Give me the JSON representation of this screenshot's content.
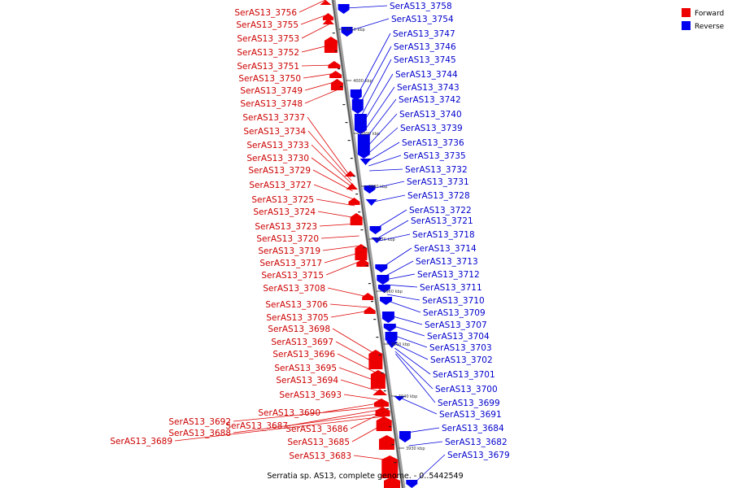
{
  "caption": "Serratia sp. AS13, complete genome. - 0..5442549",
  "colors": {
    "forward": "#ee0000",
    "reverse": "#0000ee",
    "backbone": "#808080"
  },
  "legend": [
    {
      "label": "Forward",
      "color": "#ee0000"
    },
    {
      "label": "Reverse",
      "color": "#0000ee"
    }
  ],
  "ticks": [
    "4010 kbp",
    "4000 kbp",
    "3990 kbp",
    "3980 kbp",
    "3970 kbp",
    "3960 kbp",
    "3950 kbp",
    "3940 kbp",
    "3930 kbp"
  ],
  "forward_genes": [
    "SerAS13_3756",
    "SerAS13_3755",
    "SerAS13_3753",
    "SerAS13_3752",
    "SerAS13_3751",
    "SerAS13_3750",
    "SerAS13_3749",
    "SerAS13_3748",
    "SerAS13_3737",
    "SerAS13_3734",
    "SerAS13_3733",
    "SerAS13_3730",
    "SerAS13_3729",
    "SerAS13_3727",
    "SerAS13_3725",
    "SerAS13_3724",
    "SerAS13_3723",
    "SerAS13_3720",
    "SerAS13_3719",
    "SerAS13_3717",
    "SerAS13_3715",
    "SerAS13_3708",
    "SerAS13_3706",
    "SerAS13_3705",
    "SerAS13_3698",
    "SerAS13_3697",
    "SerAS13_3696",
    "SerAS13_3695",
    "SerAS13_3694",
    "SerAS13_3693",
    "SerAS13_3690",
    "SerAS13_3692",
    "SerAS13_3687",
    "SerAS13_3686",
    "SerAS13_3688",
    "SerAS13_3689",
    "SerAS13_3685",
    "SerAS13_3683"
  ],
  "reverse_genes": [
    "SerAS13_3758",
    "SerAS13_3754",
    "SerAS13_3747",
    "SerAS13_3746",
    "SerAS13_3745",
    "SerAS13_3744",
    "SerAS13_3743",
    "SerAS13_3742",
    "SerAS13_3740",
    "SerAS13_3739",
    "SerAS13_3736",
    "SerAS13_3735",
    "SerAS13_3732",
    "SerAS13_3731",
    "SerAS13_3728",
    "SerAS13_3722",
    "SerAS13_3721",
    "SerAS13_3718",
    "SerAS13_3714",
    "SerAS13_3713",
    "SerAS13_3712",
    "SerAS13_3711",
    "SerAS13_3710",
    "SerAS13_3709",
    "SerAS13_3707",
    "SerAS13_3704",
    "SerAS13_3703",
    "SerAS13_3702",
    "SerAS13_3701",
    "SerAS13_3700",
    "SerAS13_3699",
    "SerAS13_3691",
    "SerAS13_3684",
    "SerAS13_3682",
    "SerAS13_3679"
  ]
}
